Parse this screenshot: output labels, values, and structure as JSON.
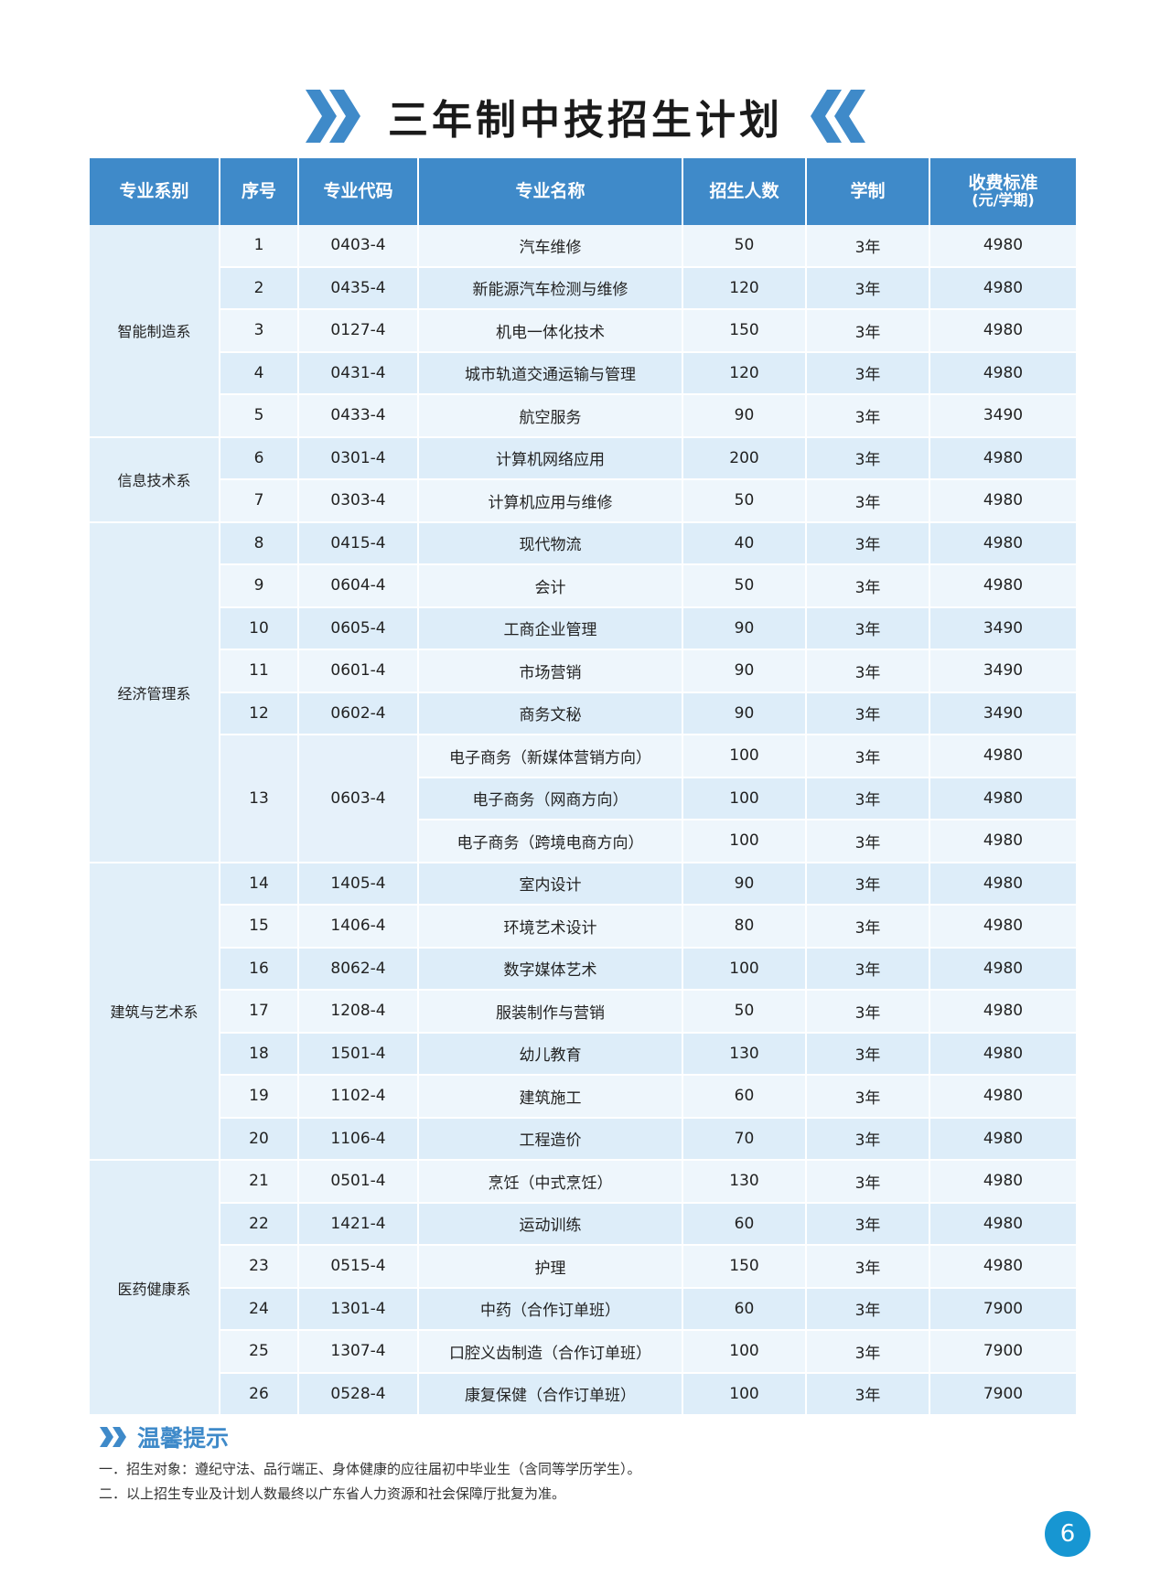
{
  "title": "三年制中技招生计划",
  "colors": {
    "accent": "#3f8ac9",
    "row_light": "#eef6fc",
    "row_dark": "#ddedf9",
    "page_badge": "#1796d2"
  },
  "table": {
    "headers": [
      "专业系别",
      "序号",
      "专业代码",
      "专业名称",
      "招生人数",
      "学制",
      "收费标准"
    ],
    "fee_unit": "(元/学期)",
    "departments": [
      {
        "name": "智能制造系",
        "rows": [
          {
            "no": "1",
            "code": "0403-4",
            "majors": [
              {
                "name": "汽车维修",
                "count": "50",
                "years": "3年",
                "fee": "4980"
              }
            ]
          },
          {
            "no": "2",
            "code": "0435-4",
            "majors": [
              {
                "name": "新能源汽车检测与维修",
                "count": "120",
                "years": "3年",
                "fee": "4980"
              }
            ]
          },
          {
            "no": "3",
            "code": "0127-4",
            "majors": [
              {
                "name": "机电一体化技术",
                "count": "150",
                "years": "3年",
                "fee": "4980"
              }
            ]
          },
          {
            "no": "4",
            "code": "0431-4",
            "majors": [
              {
                "name": "城市轨道交通运输与管理",
                "count": "120",
                "years": "3年",
                "fee": "4980"
              }
            ]
          },
          {
            "no": "5",
            "code": "0433-4",
            "majors": [
              {
                "name": "航空服务",
                "count": "90",
                "years": "3年",
                "fee": "3490"
              }
            ]
          }
        ]
      },
      {
        "name": "信息技术系",
        "rows": [
          {
            "no": "6",
            "code": "0301-4",
            "majors": [
              {
                "name": "计算机网络应用",
                "count": "200",
                "years": "3年",
                "fee": "4980"
              }
            ]
          },
          {
            "no": "7",
            "code": "0303-4",
            "majors": [
              {
                "name": "计算机应用与维修",
                "count": "50",
                "years": "3年",
                "fee": "4980"
              }
            ]
          }
        ]
      },
      {
        "name": "经济管理系",
        "rows": [
          {
            "no": "8",
            "code": "0415-4",
            "majors": [
              {
                "name": "现代物流",
                "count": "40",
                "years": "3年",
                "fee": "4980"
              }
            ]
          },
          {
            "no": "9",
            "code": "0604-4",
            "majors": [
              {
                "name": "会计",
                "count": "50",
                "years": "3年",
                "fee": "4980"
              }
            ]
          },
          {
            "no": "10",
            "code": "0605-4",
            "majors": [
              {
                "name": "工商企业管理",
                "count": "90",
                "years": "3年",
                "fee": "3490"
              }
            ]
          },
          {
            "no": "11",
            "code": "0601-4",
            "majors": [
              {
                "name": "市场营销",
                "count": "90",
                "years": "3年",
                "fee": "3490"
              }
            ]
          },
          {
            "no": "12",
            "code": "0602-4",
            "majors": [
              {
                "name": "商务文秘",
                "count": "90",
                "years": "3年",
                "fee": "3490"
              }
            ]
          },
          {
            "no": "13",
            "code": "0603-4",
            "majors": [
              {
                "name": "电子商务（新媒体营销方向）",
                "count": "100",
                "years": "3年",
                "fee": "4980"
              },
              {
                "name": "电子商务（网商方向）",
                "count": "100",
                "years": "3年",
                "fee": "4980"
              },
              {
                "name": "电子商务（跨境电商方向）",
                "count": "100",
                "years": "3年",
                "fee": "4980"
              }
            ]
          }
        ]
      },
      {
        "name": "建筑与艺术系",
        "rows": [
          {
            "no": "14",
            "code": "1405-4",
            "majors": [
              {
                "name": "室内设计",
                "count": "90",
                "years": "3年",
                "fee": "4980"
              }
            ]
          },
          {
            "no": "15",
            "code": "1406-4",
            "majors": [
              {
                "name": "环境艺术设计",
                "count": "80",
                "years": "3年",
                "fee": "4980"
              }
            ]
          },
          {
            "no": "16",
            "code": "8062-4",
            "majors": [
              {
                "name": "数字媒体艺术",
                "count": "100",
                "years": "3年",
                "fee": "4980"
              }
            ]
          },
          {
            "no": "17",
            "code": "1208-4",
            "majors": [
              {
                "name": "服装制作与营销",
                "count": "50",
                "years": "3年",
                "fee": "4980"
              }
            ]
          },
          {
            "no": "18",
            "code": "1501-4",
            "majors": [
              {
                "name": "幼儿教育",
                "count": "130",
                "years": "3年",
                "fee": "4980"
              }
            ]
          },
          {
            "no": "19",
            "code": "1102-4",
            "majors": [
              {
                "name": "建筑施工",
                "count": "60",
                "years": "3年",
                "fee": "4980"
              }
            ]
          },
          {
            "no": "20",
            "code": "1106-4",
            "majors": [
              {
                "name": "工程造价",
                "count": "70",
                "years": "3年",
                "fee": "4980"
              }
            ]
          }
        ]
      },
      {
        "name": "医药健康系",
        "rows": [
          {
            "no": "21",
            "code": "0501-4",
            "majors": [
              {
                "name": "烹饪（中式烹饪）",
                "count": "130",
                "years": "3年",
                "fee": "4980"
              }
            ]
          },
          {
            "no": "22",
            "code": "1421-4",
            "majors": [
              {
                "name": "运动训练",
                "count": "60",
                "years": "3年",
                "fee": "4980"
              }
            ]
          },
          {
            "no": "23",
            "code": "0515-4",
            "majors": [
              {
                "name": "护理",
                "count": "150",
                "years": "3年",
                "fee": "4980"
              }
            ]
          },
          {
            "no": "24",
            "code": "1301-4",
            "majors": [
              {
                "name": "中药（合作订单班）",
                "count": "60",
                "years": "3年",
                "fee": "7900"
              }
            ]
          },
          {
            "no": "25",
            "code": "1307-4",
            "majors": [
              {
                "name": "口腔义齿制造（合作订单班）",
                "count": "100",
                "years": "3年",
                "fee": "7900"
              }
            ]
          },
          {
            "no": "26",
            "code": "0528-4",
            "majors": [
              {
                "name": "康复保健（合作订单班）",
                "count": "100",
                "years": "3年",
                "fee": "7900"
              }
            ]
          }
        ]
      }
    ]
  },
  "tips": {
    "title": "温馨提示",
    "lines": [
      "一．招生对象：遵纪守法、品行端正、身体健康的应往届初中毕业生（含同等学历学生）。",
      "二．以上招生专业及计划人数最终以广东省人力资源和社会保障厅批复为准。"
    ]
  },
  "page_number": "6"
}
